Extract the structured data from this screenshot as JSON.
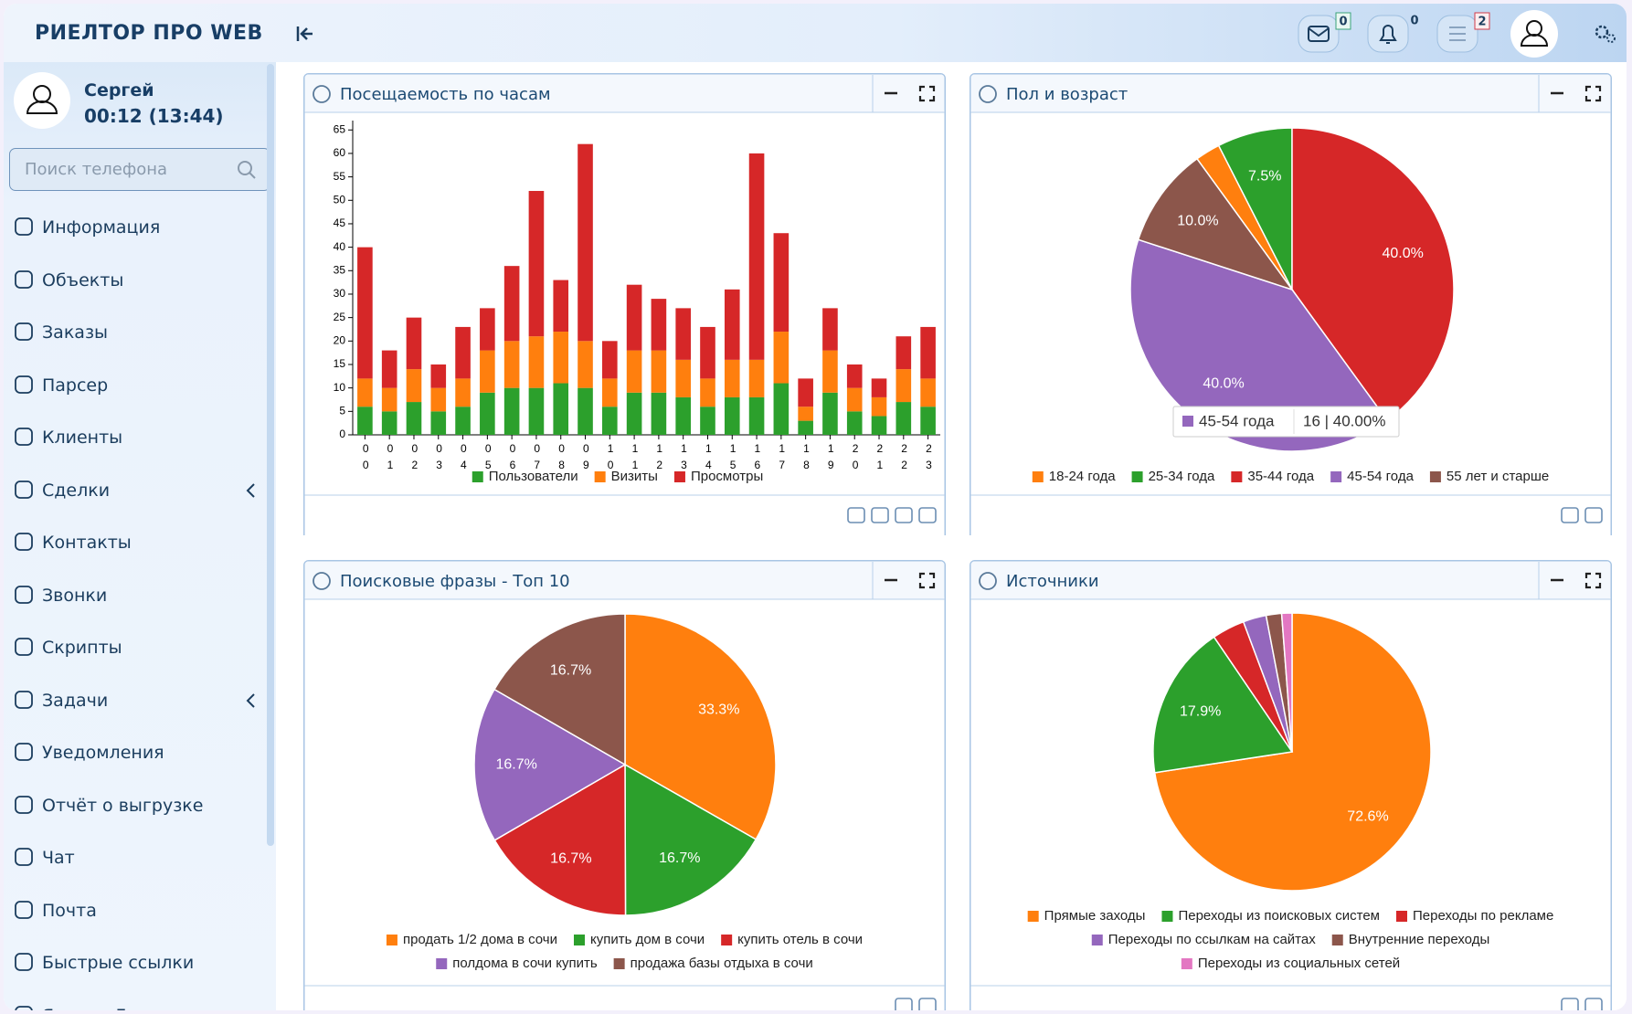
{
  "header": {
    "title": "РИЕЛТОР ПРО WEB",
    "badges": {
      "mail": 0,
      "notifications": 0,
      "tasks": 2
    }
  },
  "user": {
    "name": "Сергей",
    "time": "00:12 (13:44)"
  },
  "search": {
    "placeholder": "Поиск телефона"
  },
  "menu": [
    "Информация",
    "Объекты",
    "Заказы",
    "Парсер",
    "Клиенты",
    "Сделки",
    "Контакты",
    "Звонки",
    "Скрипты",
    "Задачи",
    "Уведомления",
    "Отчёт о выгрузке",
    "Чат",
    "Почта",
    "Быстрые ссылки",
    "Яндекс Диск"
  ],
  "chart_data": [
    {
      "type": "bar",
      "stacked": true,
      "title": "Посещаемость по часам",
      "categories": [
        "00",
        "01",
        "02",
        "03",
        "04",
        "05",
        "06",
        "07",
        "08",
        "09",
        "10",
        "11",
        "12",
        "13",
        "14",
        "15",
        "16",
        "17",
        "18",
        "19",
        "20",
        "21",
        "22",
        "23"
      ],
      "series": [
        {
          "name": "Пользователи",
          "color": "#2ca02c",
          "values": [
            6,
            5,
            7,
            5,
            6,
            9,
            10,
            10,
            11,
            10,
            6,
            9,
            9,
            8,
            6,
            8,
            8,
            11,
            3,
            9,
            5,
            4,
            7,
            6
          ]
        },
        {
          "name": "Визиты",
          "color": "#ff7f0e",
          "values": [
            6,
            5,
            7,
            5,
            6,
            9,
            10,
            11,
            11,
            10,
            6,
            9,
            9,
            8,
            6,
            8,
            8,
            11,
            3,
            9,
            5,
            4,
            7,
            6
          ]
        },
        {
          "name": "Просмотры",
          "color": "#d62728",
          "values": [
            28,
            8,
            11,
            5,
            11,
            9,
            16,
            31,
            11,
            42,
            8,
            14,
            11,
            11,
            11,
            15,
            44,
            21,
            6,
            9,
            5,
            4,
            7,
            11
          ]
        }
      ],
      "ylim": [
        0,
        67
      ],
      "yticks": [
        0,
        5,
        10,
        15,
        20,
        25,
        30,
        35,
        40,
        45,
        50,
        55,
        60,
        65
      ]
    },
    {
      "type": "pie",
      "title": "Пол и возраст",
      "categories": [
        "18-24 года",
        "25-34 года",
        "35-44 года",
        "45-54 года",
        "55 лет и старше"
      ],
      "values": [
        2.5,
        7.5,
        40,
        40,
        10
      ],
      "value_labels": [
        null,
        "7.5%",
        "40.0%",
        "40.0%",
        "10.0%"
      ],
      "colors": [
        "#ff7f0e",
        "#2ca02c",
        "#d62728",
        "#9467bd",
        "#8c564b"
      ],
      "tooltip": {
        "name": "45-54 года",
        "value": "16 | 40.00%"
      }
    },
    {
      "type": "pie",
      "title": "Поисковые фразы - Топ 10",
      "categories": [
        "продать 1/2 дома в сочи",
        "купить дом в сочи",
        "купить отель в сочи",
        "полдома в сочи купить",
        "продажа базы отдыха в сочи"
      ],
      "values": [
        33.3,
        16.7,
        16.7,
        16.7,
        16.7
      ],
      "value_labels": [
        "33.3%",
        "16.7%",
        "16.7%",
        "16.7%",
        "16.7%"
      ],
      "colors": [
        "#ff7f0e",
        "#2ca02c",
        "#d62728",
        "#9467bd",
        "#8c564b"
      ]
    },
    {
      "type": "pie",
      "title": "Источники",
      "categories": [
        "Прямые заходы",
        "Переходы из поисковых систем",
        "Переходы по рекламе",
        "Переходы по ссылкам на сайтах",
        "Внутренние переходы",
        "Переходы из социальных сетей"
      ],
      "values": [
        72.6,
        17.9,
        3.8,
        2.7,
        1.8,
        1.2
      ],
      "value_labels": [
        "72.6%",
        "17.9%",
        null,
        null,
        null,
        null
      ],
      "colors": [
        "#ff7f0e",
        "#2ca02c",
        "#d62728",
        "#9467bd",
        "#8c564b",
        "#e377c2"
      ]
    }
  ]
}
